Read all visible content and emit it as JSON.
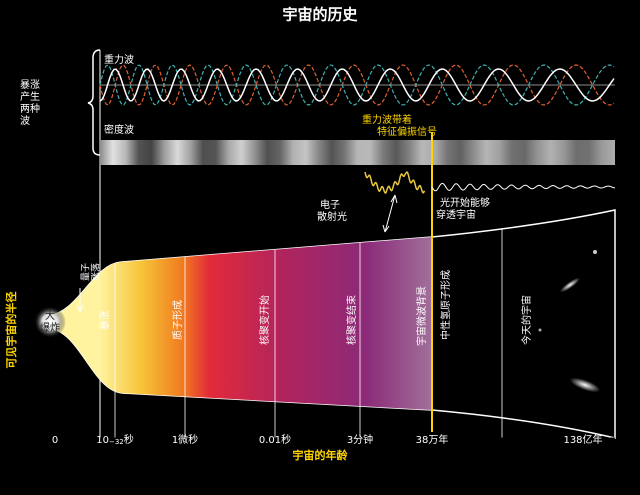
{
  "title": "宇宙的历史",
  "inflation_note": [
    "暴涨",
    "产生",
    "两种",
    "波"
  ],
  "waves": {
    "gravity": "重力波",
    "density": "密度波"
  },
  "annotations": {
    "polarization": [
      "重力波带着",
      "特征偏振信号"
    ],
    "scatter": [
      "电子",
      "散射光"
    ],
    "transparent": [
      "光开始能够",
      "穿透宇宙"
    ],
    "quantum": [
      "量子",
      "涨落"
    ],
    "big_bang": [
      "大",
      "爆炸"
    ]
  },
  "epochs": [
    "暴涨",
    "质子形成",
    "核聚变开始",
    "核聚变结束",
    "宇宙微波背景",
    "中性氢原子形成",
    "今天的宇宙"
  ],
  "axis": {
    "y_label": "可见宇宙的半径",
    "x_label": "宇宙的年龄",
    "planck_tick": {
      "base": "10",
      "exp": "−32",
      "unit": "秒"
    },
    "ticks": [
      "0",
      "1微秒",
      "0.01秒",
      "3分钟",
      "38万年",
      "138亿年"
    ]
  }
}
